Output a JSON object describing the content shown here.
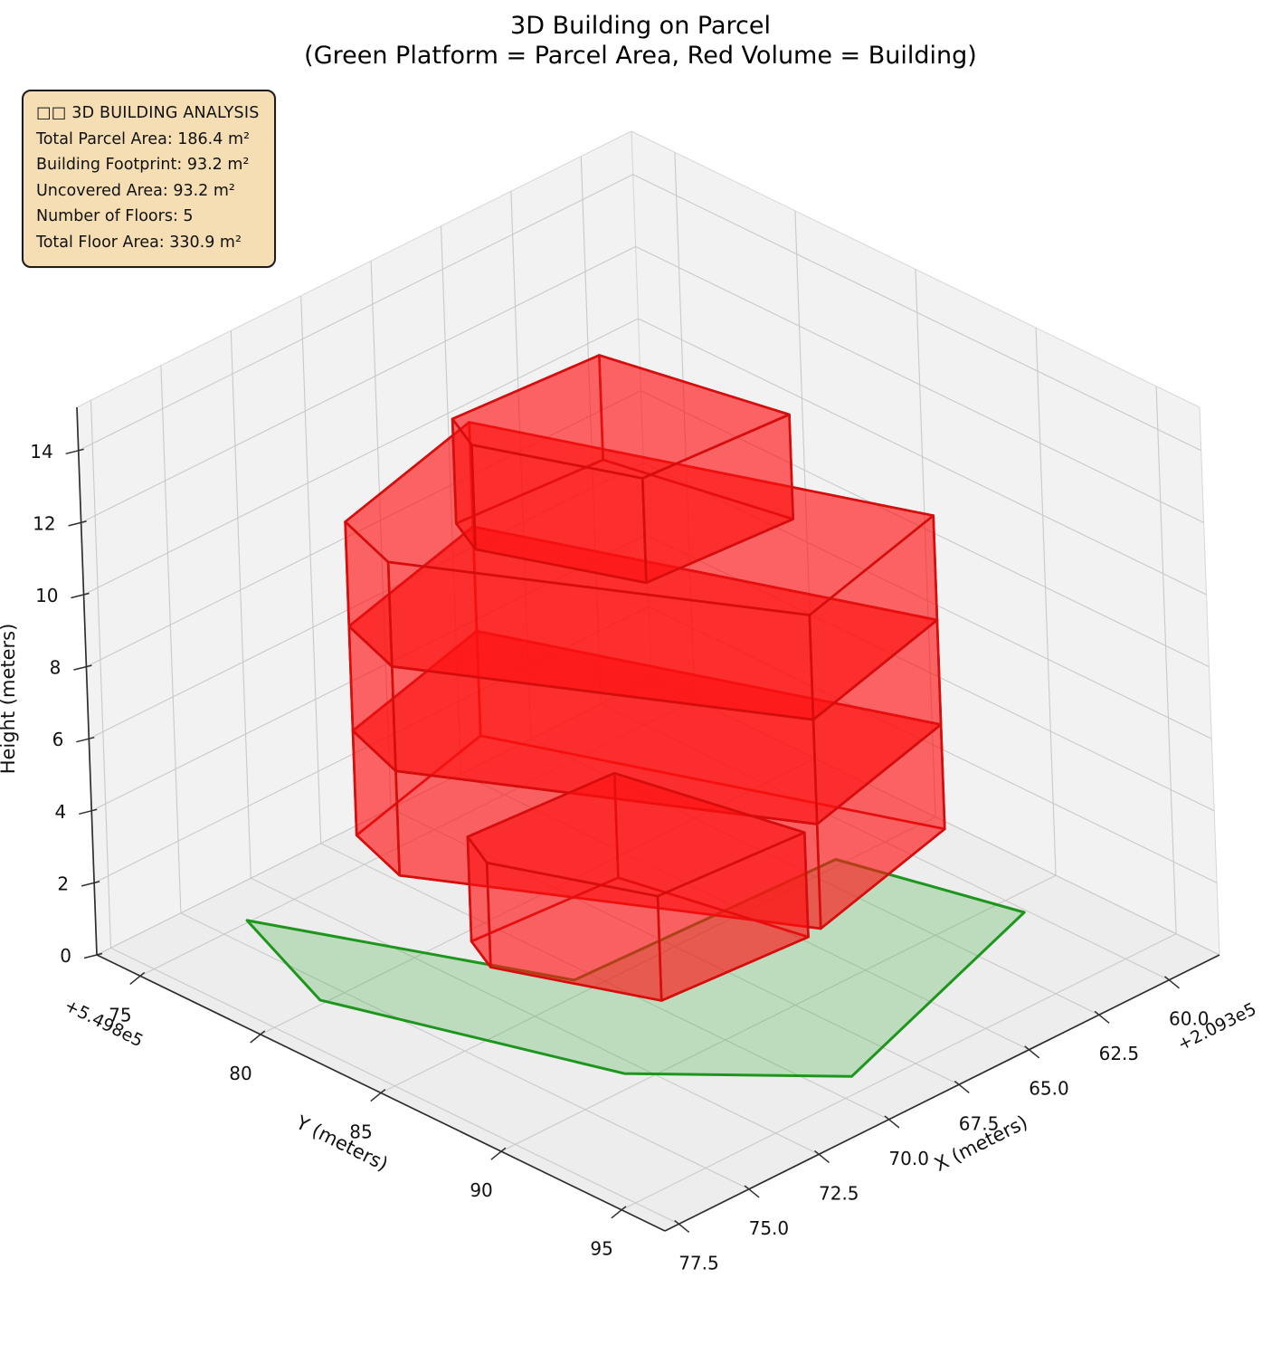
{
  "title": {
    "line1": "3D Building on Parcel",
    "line2": "(Green Platform = Parcel Area, Red Volume = Building)"
  },
  "info_box": {
    "header": "□□ 3D BUILDING ANALYSIS",
    "rows": [
      "Total Parcel Area:  186.4 m²",
      "Building Footprint:  93.2 m²",
      "Uncovered Area:  93.2 m²",
      "Number of Floors:  5",
      "Total Floor Area:  330.9 m²"
    ],
    "background": "#f5deb3",
    "border_color": "#1c1c1c"
  },
  "chart_data": {
    "type": "3d-extruded-polygon",
    "title": "3D Building on Parcel",
    "subtitle": "(Green Platform = Parcel Area, Red Volume = Building)",
    "xlabel": "X (meters)",
    "ylabel": "Y (meters)",
    "zlabel": "Height (meters)",
    "x_offset_text": "+2.093e5",
    "y_offset_text": "+5.498e5",
    "xlim": [
      209358.2,
      209378.0
    ],
    "ylim": [
      549873.2,
      549896.8
    ],
    "zlim": [
      0,
      15.2
    ],
    "xticks": {
      "values": [
        209360.0,
        209362.5,
        209365.0,
        209367.5,
        209370.0,
        209372.5,
        209375.0,
        209377.5
      ],
      "labels": [
        "60.0",
        "62.5",
        "65.0",
        "67.5",
        "70.0",
        "72.5",
        "75.0",
        "77.5"
      ]
    },
    "yticks": {
      "values": [
        549875,
        549880,
        549885,
        549890,
        549895
      ],
      "labels": [
        "75",
        "80",
        "85",
        "90",
        "95"
      ]
    },
    "zticks": {
      "values": [
        0,
        2,
        4,
        6,
        8,
        10,
        12,
        14
      ],
      "labels": [
        "0",
        "2",
        "4",
        "6",
        "8",
        "10",
        "12",
        "14"
      ]
    },
    "grid": true,
    "legend_position": "none",
    "parcel": {
      "area_m2": 186.4,
      "vertices": [
        [
          209374.1,
          549874.9
        ],
        [
          209375.7,
          549879.8
        ],
        [
          209373.0,
          549889.3
        ],
        [
          209369.1,
          549894.2
        ],
        [
          209360.1,
          549890.9
        ],
        [
          209361.5,
          549884.7
        ],
        [
          209370.5,
          549884.3
        ]
      ]
    },
    "building": {
      "num_floors": 5,
      "floor_height_m": 2.9,
      "footprint_area_m2": 93.2,
      "uncovered_area_m2": 93.2,
      "total_floor_area_m2": 330.9,
      "footprint_large": [
        [
          209372.8,
          549878.1
        ],
        [
          209373.5,
          549880.7
        ],
        [
          209368.0,
          549891.8
        ],
        [
          209362.2,
          549890.2
        ],
        [
          209367.0,
          549876.5
        ]
      ],
      "footprint_small": [
        [
          209370.9,
          549880.5
        ],
        [
          209371.5,
          549882.0
        ],
        [
          209369.7,
          549887.0
        ],
        [
          209364.8,
          549887.4
        ],
        [
          209366.0,
          549880.9
        ]
      ],
      "floor_plan": [
        "small",
        "large",
        "large",
        "large",
        "small"
      ],
      "draw_order": [
        2,
        3,
        4,
        1,
        5
      ]
    },
    "colors": {
      "building_face": "rgba(255,18,18,0.40)",
      "building_edge": "#d60d0d",
      "parcel_face": "rgba(60,175,60,0.27)",
      "parcel_edge": "#1e961e",
      "pane": "#f2f2f3",
      "pane_floor": "#ededee",
      "pane_edge": "#d6d6d6",
      "grid": "#c9c9c9",
      "axis_line": "#2e2e2e",
      "tick_label": "#111111"
    }
  }
}
